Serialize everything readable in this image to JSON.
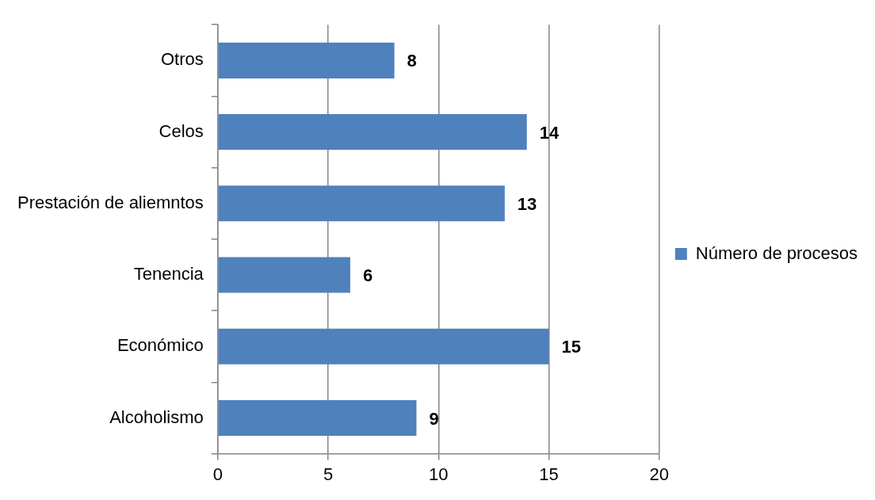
{
  "chart_data": {
    "type": "bar",
    "orientation": "horizontal",
    "categories": [
      "Otros",
      "Celos",
      "Prestación de aliemntos",
      "Tenencia",
      "Económico",
      "Alcoholismo"
    ],
    "series": [
      {
        "name": "Número de procesos",
        "color": "#4f81bd",
        "values": [
          8,
          14,
          13,
          6,
          15,
          9
        ]
      }
    ],
    "xlim": [
      0,
      20
    ],
    "xticks": [
      0,
      5,
      10,
      15,
      20
    ],
    "grid": "x",
    "legend": "right",
    "data_labels": true
  }
}
